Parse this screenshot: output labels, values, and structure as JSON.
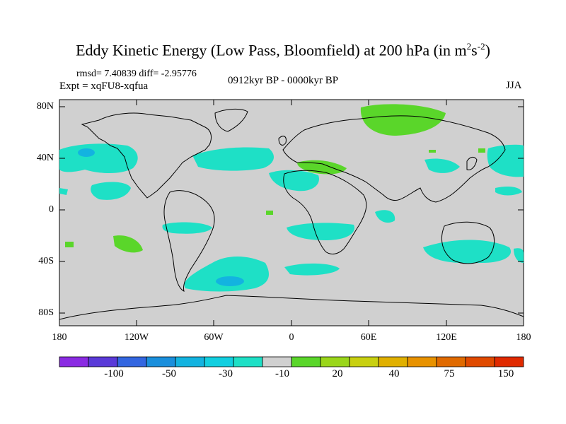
{
  "title": {
    "main": "Eddy Kinetic Energy (Low Pass, Bloomfield) at 200 hPa (in m",
    "sup1": "2",
    "mid": "s",
    "sup2": "-2",
    "end": ")"
  },
  "stats": "rmsd= 7.40839 diff= -2.95776",
  "experiment": "Expt = xqFU8-xqfua",
  "period": "0912kyr BP - 0000kyr BP",
  "season": "JJA",
  "lat_labels": [
    "80N",
    "40N",
    "0",
    "40S",
    "80S"
  ],
  "lon_labels": [
    "180",
    "120W",
    "60W",
    "0",
    "60E",
    "120E",
    "180"
  ],
  "colorbar": {
    "labels": [
      "-100",
      "-50",
      "-30",
      "-10",
      "20",
      "40",
      "75",
      "150"
    ],
    "colors": [
      "#8a2be2",
      "#5a3ad8",
      "#3366e0",
      "#1a8fdc",
      "#13b3e0",
      "#12cfe0",
      "#1ee0c6",
      "#d0d0d0",
      "#5ad62a",
      "#9ad61a",
      "#c8d010",
      "#e0b000",
      "#e89200",
      "#e06a00",
      "#e04a00",
      "#e02a00"
    ]
  },
  "map": {
    "land_color": "#d0d0d0",
    "colors": {
      "neg_light": "#1ee0c6",
      "neg_mid": "#12cfe0",
      "neg_dark": "#13b3e0",
      "pos_light": "#5ad62a"
    }
  }
}
